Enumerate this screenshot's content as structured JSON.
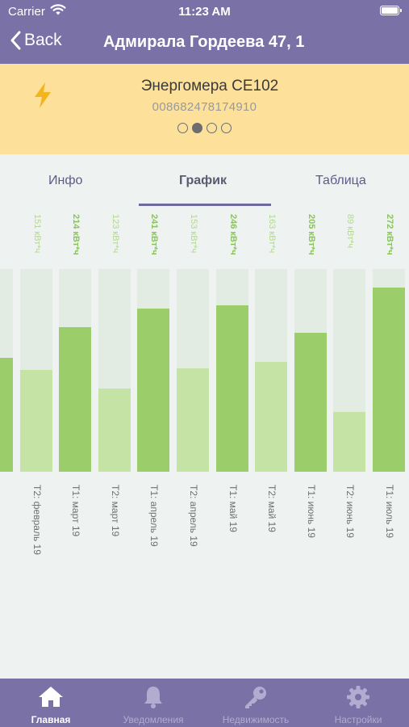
{
  "status": {
    "carrier": "Carrier",
    "time": "11:23 AM"
  },
  "nav": {
    "back_label": "Back",
    "title": "Адмирала Гордеева 47, 1"
  },
  "meter": {
    "name": "Энергомера CE102",
    "serial": "008682478174910",
    "pages": 4,
    "active_page": 2,
    "icon": "lightning-bolt-icon",
    "icon_color": "#f2b51f"
  },
  "tabs": [
    {
      "label": "Инфо",
      "active": false
    },
    {
      "label": "График",
      "active": true
    },
    {
      "label": "Таблица",
      "active": false
    }
  ],
  "chart_data": {
    "type": "bar",
    "ylim": [
      0,
      300
    ],
    "colors": {
      "t1": "#9bcd6a",
      "t2": "#c6e3a6",
      "t1_label": "#8ac35a",
      "t2_label": "#b4d990",
      "track": "#e3ece3"
    },
    "bars": [
      {
        "category": "",
        "value": 168,
        "tariff": "T1",
        "label": ""
      },
      {
        "category": "T2: февраль 19",
        "value": 151,
        "tariff": "T2",
        "label": "151 кВт*ч"
      },
      {
        "category": "T1: март 19",
        "value": 214,
        "tariff": "T1",
        "label": "214 кВт*ч"
      },
      {
        "category": "T2: март 19",
        "value": 123,
        "tariff": "T2",
        "label": "123 кВт*ч"
      },
      {
        "category": "T1: апрель 19",
        "value": 241,
        "tariff": "T1",
        "label": "241 кВт*ч"
      },
      {
        "category": "T2: апрель 19",
        "value": 153,
        "tariff": "T2",
        "label": "153 кВт*ч"
      },
      {
        "category": "T1: май 19",
        "value": 246,
        "tariff": "T1",
        "label": "246 кВт*ч"
      },
      {
        "category": "T2: май 19",
        "value": 163,
        "tariff": "T2",
        "label": "163 кВт*ч"
      },
      {
        "category": "T1: июнь 19",
        "value": 205,
        "tariff": "T1",
        "label": "205 кВт*ч"
      },
      {
        "category": "T2: июнь 19",
        "value": 89,
        "tariff": "T2",
        "label": "89 кВт*ч"
      },
      {
        "category": "T1: июль 19",
        "value": 272,
        "tariff": "T1",
        "label": "272 кВт*ч"
      }
    ]
  },
  "tabbar": [
    {
      "label": "Главная",
      "icon": "home-icon",
      "active": true
    },
    {
      "label": "Уведомления",
      "icon": "bell-icon",
      "active": false
    },
    {
      "label": "Недвижимость",
      "icon": "key-icon",
      "active": false
    },
    {
      "label": "Настройки",
      "icon": "gear-icon",
      "active": false
    }
  ]
}
